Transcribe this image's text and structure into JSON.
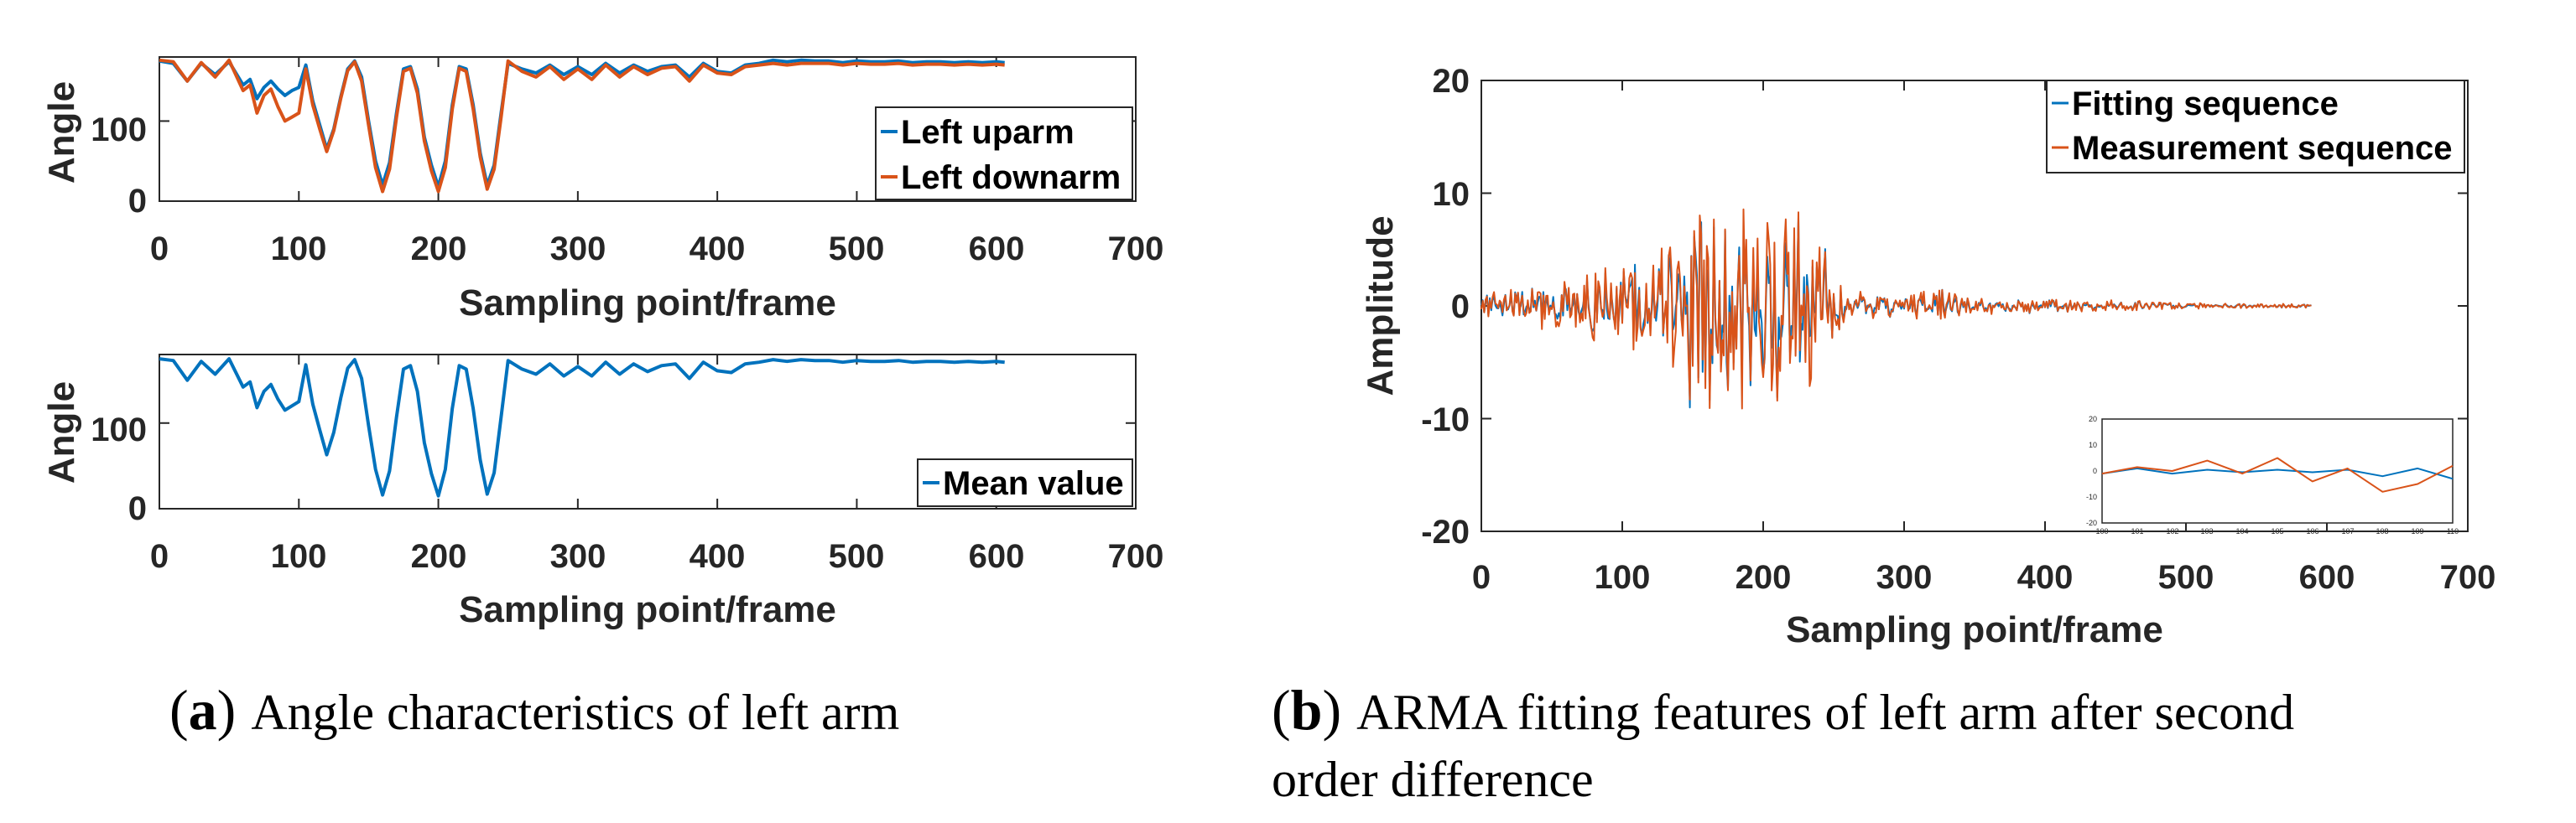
{
  "colors": {
    "blue": "#0072BD",
    "orange": "#D95319"
  },
  "captions": {
    "a_letter": "a",
    "a_text": "Angle characteristics of left arm",
    "b_letter": "b",
    "b_text_line1": "ARMA fitting features of left arm after second",
    "b_text_line2": "order difference"
  },
  "chart_data": [
    {
      "id": "a_top",
      "type": "line",
      "xlabel": "Sampling point/frame",
      "ylabel": "Angle",
      "xlim": [
        0,
        700
      ],
      "ylim": [
        0,
        180
      ],
      "xticks": [
        "0",
        "100",
        "200",
        "300",
        "400",
        "500",
        "600",
        "700"
      ],
      "yticks": [
        "0",
        "100"
      ],
      "legend_position": "right",
      "series": [
        {
          "name": "Left uparm",
          "color": "#0072BD",
          "x": [
            0,
            10,
            20,
            30,
            40,
            50,
            60,
            65,
            70,
            75,
            80,
            85,
            90,
            95,
            100,
            105,
            110,
            115,
            120,
            125,
            130,
            135,
            140,
            145,
            150,
            155,
            160,
            165,
            170,
            175,
            180,
            185,
            190,
            195,
            200,
            205,
            210,
            215,
            220,
            225,
            230,
            235,
            240,
            245,
            250,
            260,
            270,
            280,
            290,
            300,
            310,
            320,
            330,
            340,
            350,
            360,
            370,
            380,
            390,
            400,
            410,
            420,
            430,
            440,
            450,
            460,
            470,
            480,
            490,
            500,
            510,
            520,
            530,
            540,
            550,
            560,
            570,
            580,
            590,
            600,
            606
          ],
          "y": [
            175,
            172,
            150,
            172,
            158,
            174,
            145,
            152,
            128,
            142,
            150,
            140,
            132,
            138,
            142,
            170,
            125,
            95,
            65,
            90,
            130,
            165,
            175,
            155,
            100,
            50,
            20,
            48,
            110,
            165,
            168,
            140,
            80,
            45,
            18,
            50,
            120,
            168,
            165,
            120,
            60,
            20,
            45,
            110,
            172,
            165,
            160,
            170,
            158,
            168,
            158,
            172,
            160,
            170,
            162,
            168,
            170,
            155,
            172,
            162,
            160,
            170,
            172,
            176,
            174,
            176,
            175,
            175,
            173,
            175,
            174,
            174,
            175,
            173,
            174,
            174,
            173,
            174,
            173,
            174,
            173
          ]
        },
        {
          "name": "Left downarm",
          "color": "#D95319",
          "x": [
            0,
            10,
            20,
            30,
            40,
            50,
            60,
            65,
            70,
            75,
            80,
            85,
            90,
            95,
            100,
            105,
            110,
            115,
            120,
            125,
            130,
            135,
            140,
            145,
            150,
            155,
            160,
            165,
            170,
            175,
            180,
            185,
            190,
            195,
            200,
            205,
            210,
            215,
            220,
            225,
            230,
            235,
            240,
            245,
            250,
            260,
            270,
            280,
            290,
            300,
            310,
            320,
            330,
            340,
            350,
            360,
            370,
            380,
            390,
            400,
            410,
            420,
            430,
            440,
            450,
            460,
            470,
            480,
            490,
            500,
            510,
            520,
            530,
            540,
            550,
            560,
            570,
            580,
            590,
            600,
            606
          ],
          "y": [
            176,
            174,
            150,
            173,
            155,
            176,
            138,
            145,
            110,
            132,
            140,
            118,
            100,
            105,
            110,
            165,
            120,
            90,
            62,
            88,
            128,
            163,
            174,
            150,
            95,
            42,
            12,
            40,
            105,
            162,
            166,
            135,
            75,
            38,
            12,
            42,
            115,
            166,
            162,
            115,
            55,
            15,
            40,
            105,
            175,
            162,
            155,
            168,
            152,
            165,
            152,
            170,
            155,
            168,
            158,
            166,
            168,
            150,
            170,
            160,
            158,
            168,
            170,
            172,
            170,
            172,
            172,
            172,
            170,
            172,
            171,
            171,
            172,
            170,
            171,
            171,
            170,
            171,
            170,
            171,
            170
          ]
        }
      ]
    },
    {
      "id": "a_bottom",
      "type": "line",
      "xlabel": "Sampling point/frame",
      "ylabel": "Angle",
      "xlim": [
        0,
        700
      ],
      "ylim": [
        0,
        180
      ],
      "xticks": [
        "0",
        "100",
        "200",
        "300",
        "400",
        "500",
        "600",
        "700"
      ],
      "yticks": [
        "0",
        "100"
      ],
      "legend_position": "bottom-right",
      "series": [
        {
          "name": "Mean value",
          "color": "#0072BD",
          "x": [
            0,
            10,
            20,
            30,
            40,
            50,
            60,
            65,
            70,
            75,
            80,
            85,
            90,
            95,
            100,
            105,
            110,
            115,
            120,
            125,
            130,
            135,
            140,
            145,
            150,
            155,
            160,
            165,
            170,
            175,
            180,
            185,
            190,
            195,
            200,
            205,
            210,
            215,
            220,
            225,
            230,
            235,
            240,
            245,
            250,
            260,
            270,
            280,
            290,
            300,
            310,
            320,
            330,
            340,
            350,
            360,
            370,
            380,
            390,
            400,
            410,
            420,
            430,
            440,
            450,
            460,
            470,
            480,
            490,
            500,
            510,
            520,
            530,
            540,
            550,
            560,
            570,
            580,
            590,
            600,
            606
          ],
          "y": [
            175,
            173,
            150,
            172,
            157,
            175,
            142,
            148,
            118,
            137,
            145,
            128,
            115,
            120,
            125,
            168,
            122,
            92,
            63,
            89,
            129,
            164,
            174,
            152,
            97,
            46,
            16,
            44,
            107,
            163,
            167,
            137,
            77,
            41,
            15,
            46,
            117,
            167,
            163,
            117,
            57,
            17,
            42,
            107,
            173,
            163,
            157,
            169,
            155,
            166,
            155,
            171,
            157,
            169,
            160,
            167,
            169,
            152,
            171,
            161,
            159,
            169,
            171,
            174,
            172,
            174,
            173,
            173,
            171,
            173,
            172,
            172,
            173,
            171,
            172,
            172,
            171,
            172,
            171,
            172,
            171
          ]
        }
      ]
    },
    {
      "id": "b",
      "type": "line",
      "xlabel": "Sampling point/frame",
      "ylabel": "Amplitude",
      "xlim": [
        0,
        700
      ],
      "ylim": [
        -20,
        20
      ],
      "xticks": [
        "0",
        "100",
        "200",
        "300",
        "400",
        "500",
        "600",
        "700"
      ],
      "yticks": [
        "-20",
        "-10",
        "0",
        "10",
        "20"
      ],
      "legend_position": "top-right",
      "series": [
        {
          "name": "Fitting sequence",
          "color": "#0072BD",
          "n_points": 590
        },
        {
          "name": "Measurement sequence",
          "color": "#D95319",
          "n_points": 590
        }
      ],
      "envelope": {
        "x": [
          0,
          20,
          40,
          60,
          80,
          100,
          110,
          120,
          130,
          140,
          150,
          160,
          170,
          180,
          190,
          200,
          210,
          220,
          230,
          240,
          250,
          260,
          300,
          330,
          350,
          400,
          450,
          500,
          550,
          590
        ],
        "amplitude": [
          1.2,
          1.8,
          2.2,
          2.5,
          3.0,
          3.5,
          5.0,
          4.0,
          6.0,
          8.0,
          7.0,
          10.0,
          9.0,
          8.0,
          9.0,
          10.0,
          9.0,
          7.0,
          8.0,
          6.0,
          4.0,
          1.2,
          1.0,
          1.5,
          0.7,
          0.6,
          0.5,
          0.3,
          0.2,
          0.15
        ]
      },
      "inset": {
        "xlim": [
          100,
          110
        ],
        "ylim": [
          -20,
          20
        ],
        "xticks": [
          "100",
          "101",
          "102",
          "103",
          "104",
          "105",
          "106",
          "107",
          "108",
          "109",
          "110"
        ],
        "yticks": [
          "20",
          "10",
          "0",
          "-10",
          "-20"
        ],
        "series": [
          {
            "name": "Fitting sequence",
            "color": "#0072BD",
            "x": [
              100,
              101,
              102,
              103,
              104,
              105,
              106,
              107,
              108,
              109,
              110
            ],
            "y": [
              -1,
              1,
              -1,
              0.5,
              -0.5,
              0.5,
              -0.5,
              0.5,
              -2,
              1,
              -3
            ]
          },
          {
            "name": "Measurement sequence",
            "color": "#D95319",
            "x": [
              100,
              101,
              102,
              103,
              104,
              105,
              106,
              107,
              108,
              109,
              110
            ],
            "y": [
              -1,
              1.5,
              0,
              4,
              -1,
              5,
              -4,
              1,
              -8,
              -5,
              2
            ]
          }
        ]
      }
    }
  ]
}
